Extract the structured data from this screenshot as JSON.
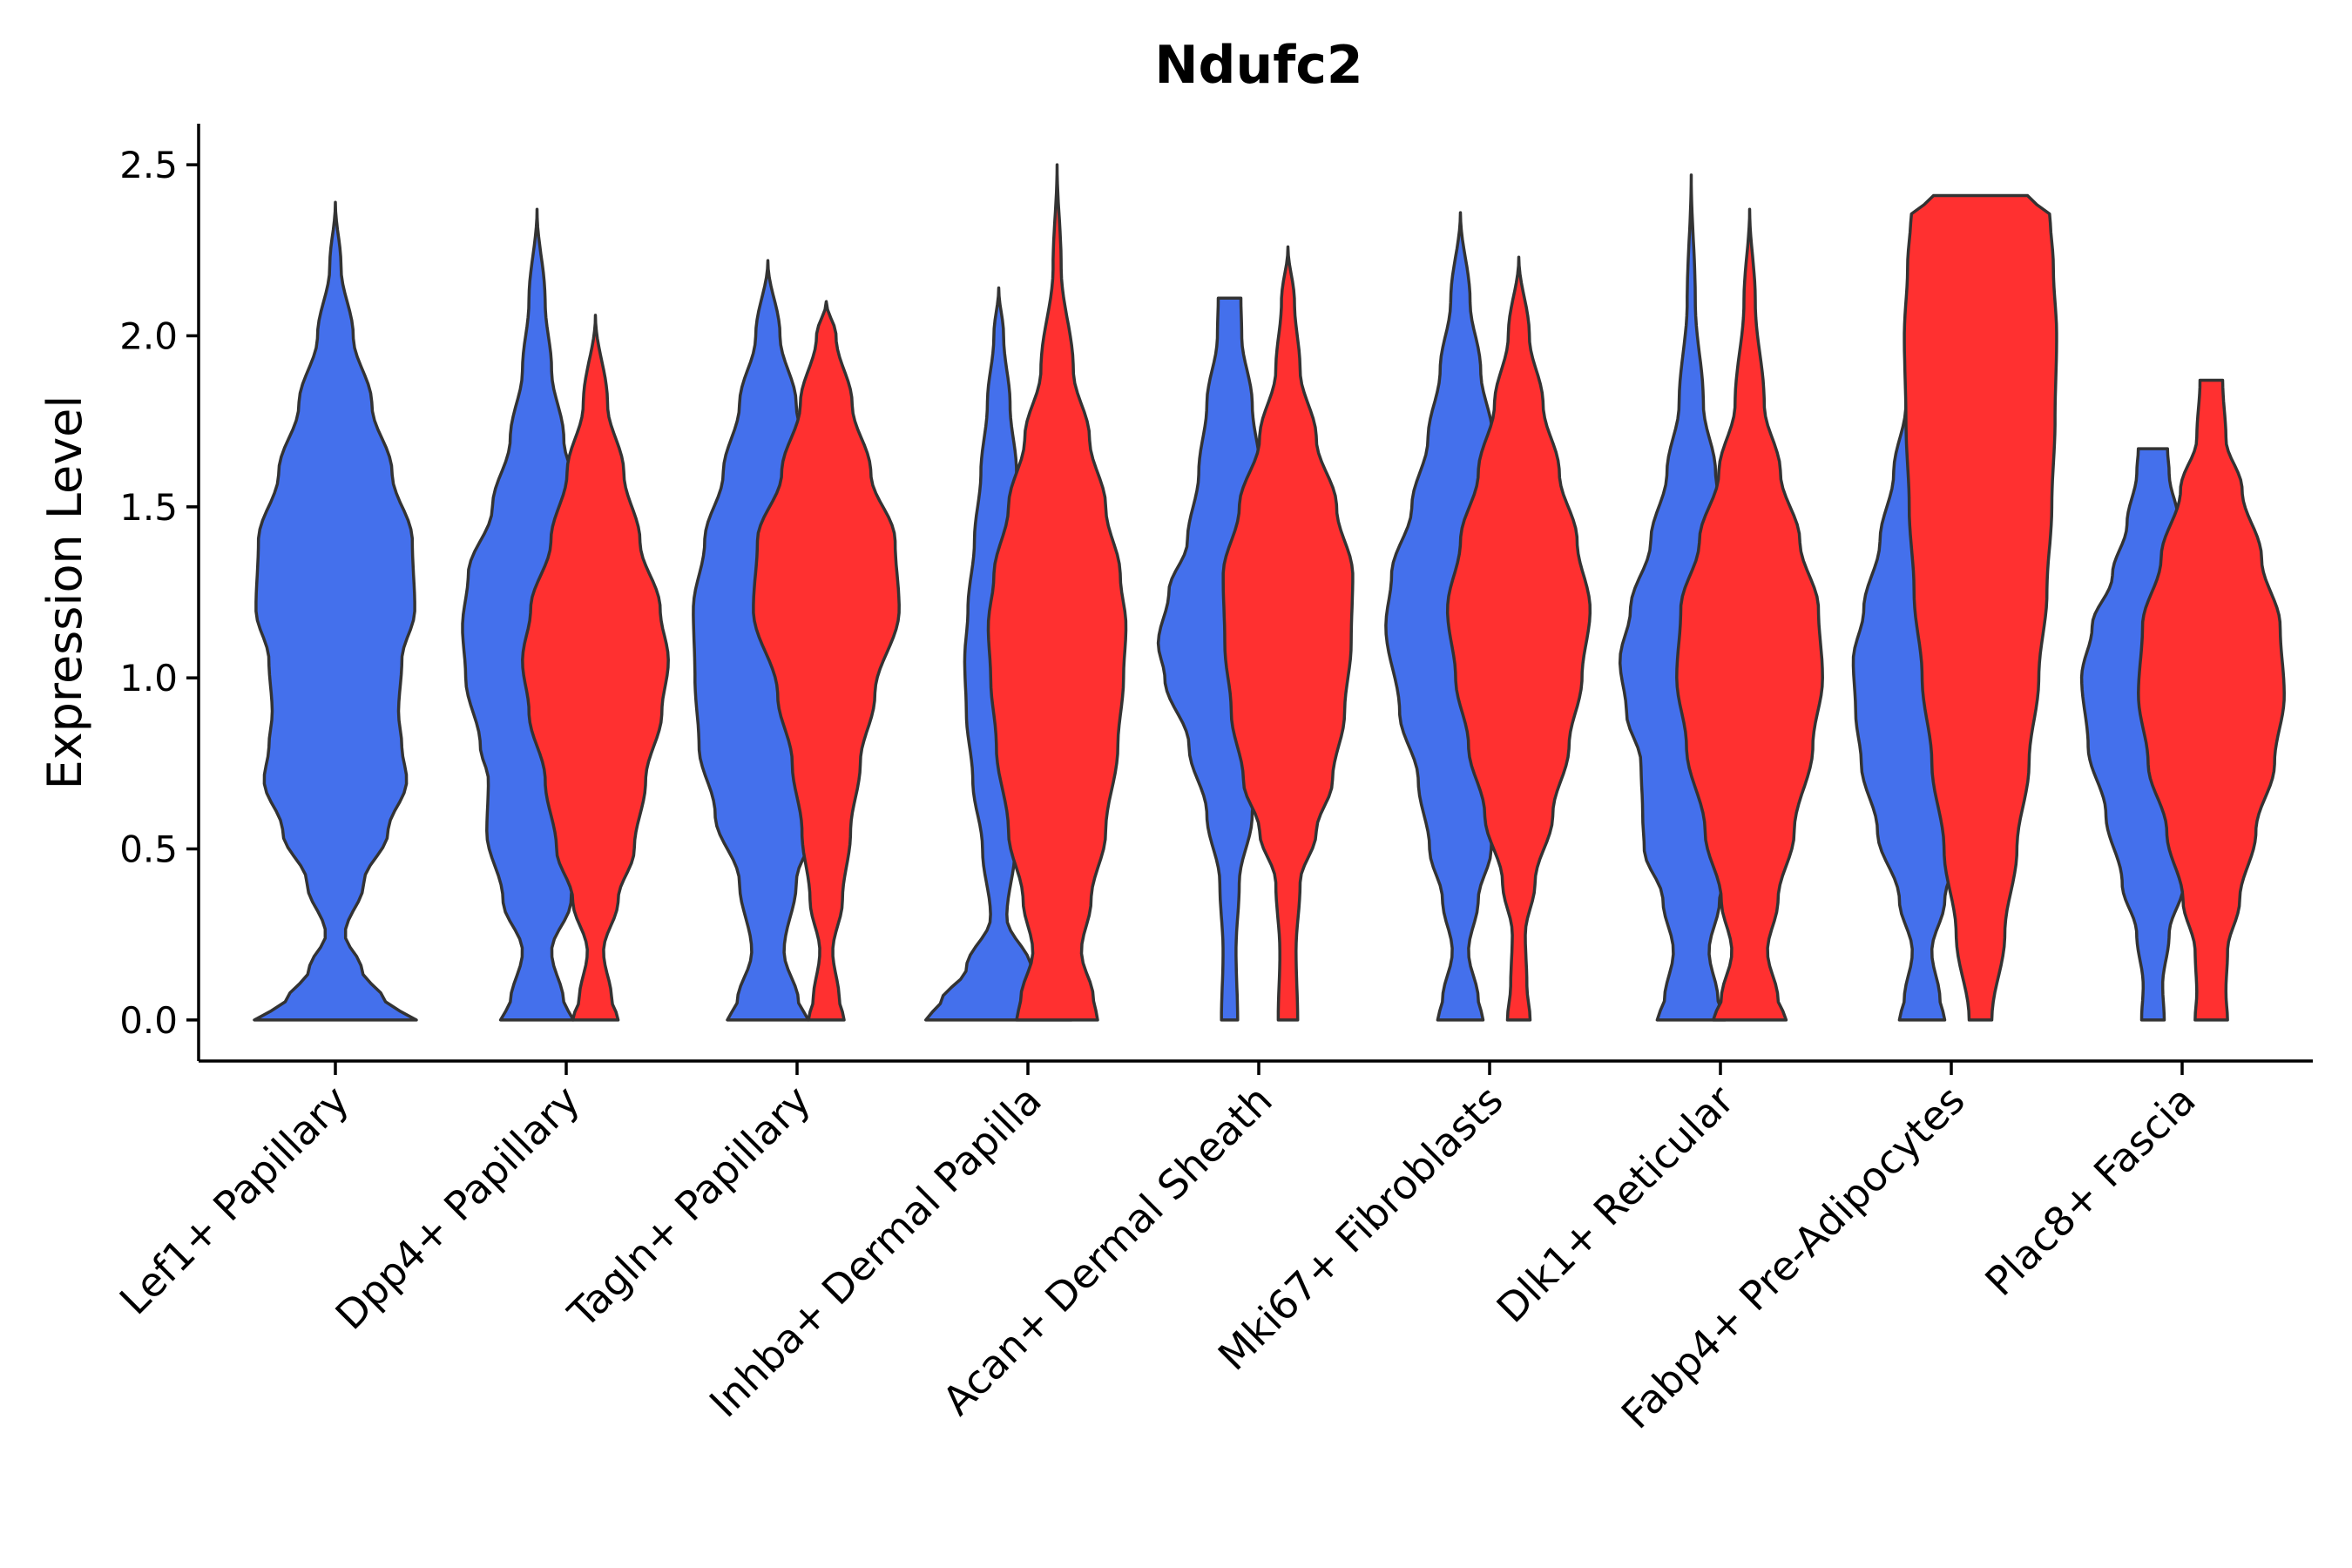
{
  "chart_data": {
    "type": "violin",
    "title": "Ndufc2",
    "xlabel": "",
    "ylabel": "Expression Level",
    "ylim": [
      -0.12,
      2.62
    ],
    "yticks": [
      "0.0",
      "0.5",
      "1.0",
      "1.5",
      "2.0",
      "2.5"
    ],
    "ytick_values": [
      0,
      0.5,
      1.0,
      1.5,
      2.0,
      2.5
    ],
    "grid": false,
    "legend": "none",
    "colors": {
      "blue": "#4470EC",
      "red": "#FF3030"
    },
    "categories": [
      "Lef1+ Papillary",
      "Dpp4+ Papillary",
      "Tagln+ Papillary",
      "Inhba+ Dermal Papilla",
      "Acan+ Dermal Sheath",
      "Mki67+ Fibroblasts",
      "Dlk1+ Reticular",
      "Fabp4+ Pre-Adipocytes",
      "Plac8+ Fascia"
    ],
    "violins": [
      {
        "category": "Lef1+ Papillary",
        "group": "blue",
        "offset": 0,
        "min": 0,
        "max": 2.39,
        "profile": [
          [
            0,
            1.0
          ],
          [
            0.05,
            0.62
          ],
          [
            0.15,
            0.32
          ],
          [
            0.25,
            0.12
          ],
          [
            0.4,
            0.35
          ],
          [
            0.55,
            0.65
          ],
          [
            0.7,
            0.88
          ],
          [
            0.8,
            0.82
          ],
          [
            0.9,
            0.78
          ],
          [
            1.05,
            0.82
          ],
          [
            1.2,
            0.98
          ],
          [
            1.4,
            0.95
          ],
          [
            1.6,
            0.7
          ],
          [
            1.8,
            0.45
          ],
          [
            2.0,
            0.22
          ],
          [
            2.2,
            0.07
          ],
          [
            2.39,
            0.0
          ]
        ]
      },
      {
        "category": "Dpp4+ Papillary",
        "group": "blue",
        "offset": -0.22,
        "min": 0,
        "max": 2.37,
        "profile": [
          [
            0,
            0.45
          ],
          [
            0.05,
            0.33
          ],
          [
            0.2,
            0.18
          ],
          [
            0.35,
            0.42
          ],
          [
            0.55,
            0.62
          ],
          [
            0.7,
            0.6
          ],
          [
            0.8,
            0.7
          ],
          [
            1.0,
            0.88
          ],
          [
            1.15,
            0.92
          ],
          [
            1.3,
            0.85
          ],
          [
            1.5,
            0.55
          ],
          [
            1.7,
            0.33
          ],
          [
            1.9,
            0.18
          ],
          [
            2.1,
            0.1
          ],
          [
            2.37,
            0.0
          ]
        ]
      },
      {
        "category": "Dpp4+ Papillary",
        "group": "red",
        "offset": 0.22,
        "min": 0,
        "max": 2.06,
        "profile": [
          [
            0,
            0.28
          ],
          [
            0.06,
            0.2
          ],
          [
            0.2,
            0.1
          ],
          [
            0.35,
            0.28
          ],
          [
            0.5,
            0.48
          ],
          [
            0.7,
            0.62
          ],
          [
            0.9,
            0.82
          ],
          [
            1.05,
            0.9
          ],
          [
            1.2,
            0.8
          ],
          [
            1.4,
            0.55
          ],
          [
            1.6,
            0.35
          ],
          [
            1.8,
            0.15
          ],
          [
            2.06,
            0.0
          ]
        ]
      },
      {
        "category": "Tagln+ Papillary",
        "group": "blue",
        "offset": -0.22,
        "min": 0,
        "max": 2.22,
        "profile": [
          [
            0,
            0.5
          ],
          [
            0.05,
            0.38
          ],
          [
            0.2,
            0.2
          ],
          [
            0.4,
            0.35
          ],
          [
            0.6,
            0.65
          ],
          [
            0.8,
            0.85
          ],
          [
            1.0,
            0.9
          ],
          [
            1.2,
            0.92
          ],
          [
            1.4,
            0.78
          ],
          [
            1.6,
            0.55
          ],
          [
            1.8,
            0.35
          ],
          [
            2.0,
            0.15
          ],
          [
            2.22,
            0.0
          ]
        ]
      },
      {
        "category": "Tagln+ Papillary",
        "group": "red",
        "offset": 0.22,
        "min": 0,
        "max": 2.1,
        "profile": [
          [
            0,
            0.22
          ],
          [
            0.06,
            0.16
          ],
          [
            0.2,
            0.08
          ],
          [
            0.35,
            0.2
          ],
          [
            0.55,
            0.3
          ],
          [
            0.75,
            0.42
          ],
          [
            0.95,
            0.6
          ],
          [
            1.2,
            0.9
          ],
          [
            1.4,
            0.85
          ],
          [
            1.6,
            0.55
          ],
          [
            1.8,
            0.32
          ],
          [
            2.0,
            0.12
          ],
          [
            2.1,
            0.0
          ]
        ]
      },
      {
        "category": "Inhba+ Dermal Papilla",
        "group": "blue",
        "offset": -0.22,
        "min": 0,
        "max": 2.14,
        "profile": [
          [
            0,
            0.9
          ],
          [
            0.05,
            0.72
          ],
          [
            0.15,
            0.4
          ],
          [
            0.3,
            0.1
          ],
          [
            0.5,
            0.2
          ],
          [
            0.7,
            0.32
          ],
          [
            0.9,
            0.4
          ],
          [
            1.05,
            0.42
          ],
          [
            1.2,
            0.38
          ],
          [
            1.4,
            0.3
          ],
          [
            1.6,
            0.22
          ],
          [
            1.8,
            0.14
          ],
          [
            2.0,
            0.06
          ],
          [
            2.14,
            0.0
          ]
        ]
      },
      {
        "category": "Inhba+ Dermal Papilla",
        "group": "red",
        "offset": 0.22,
        "min": 0,
        "max": 2.5,
        "profile": [
          [
            0,
            0.5
          ],
          [
            0.06,
            0.45
          ],
          [
            0.2,
            0.3
          ],
          [
            0.35,
            0.42
          ],
          [
            0.55,
            0.6
          ],
          [
            0.8,
            0.75
          ],
          [
            1.0,
            0.82
          ],
          [
            1.15,
            0.85
          ],
          [
            1.3,
            0.78
          ],
          [
            1.5,
            0.6
          ],
          [
            1.7,
            0.4
          ],
          [
            1.9,
            0.2
          ],
          [
            2.2,
            0.05
          ],
          [
            2.5,
            0.0
          ]
        ]
      },
      {
        "category": "Acan+ Dermal Sheath",
        "group": "blue",
        "offset": -0.22,
        "min": 0,
        "max": 2.11,
        "profile": [
          [
            0,
            0.1
          ],
          [
            0.2,
            0.08
          ],
          [
            0.4,
            0.12
          ],
          [
            0.6,
            0.28
          ],
          [
            0.8,
            0.5
          ],
          [
            1.0,
            0.8
          ],
          [
            1.1,
            0.88
          ],
          [
            1.25,
            0.75
          ],
          [
            1.4,
            0.52
          ],
          [
            1.6,
            0.38
          ],
          [
            1.8,
            0.28
          ],
          [
            2.0,
            0.15
          ],
          [
            2.11,
            0.14
          ]
        ]
      },
      {
        "category": "Acan+ Dermal Sheath",
        "group": "red",
        "offset": 0.22,
        "min": 0,
        "max": 2.26,
        "profile": [
          [
            0,
            0.12
          ],
          [
            0.2,
            0.1
          ],
          [
            0.4,
            0.15
          ],
          [
            0.55,
            0.35
          ],
          [
            0.7,
            0.55
          ],
          [
            0.9,
            0.7
          ],
          [
            1.1,
            0.78
          ],
          [
            1.3,
            0.8
          ],
          [
            1.5,
            0.6
          ],
          [
            1.7,
            0.35
          ],
          [
            1.9,
            0.15
          ],
          [
            2.1,
            0.08
          ],
          [
            2.26,
            0.0
          ]
        ]
      },
      {
        "category": "Mki67+ Fibroblasts",
        "group": "blue",
        "offset": -0.22,
        "min": 0,
        "max": 2.36,
        "profile": [
          [
            0,
            0.28
          ],
          [
            0.06,
            0.22
          ],
          [
            0.2,
            0.1
          ],
          [
            0.35,
            0.22
          ],
          [
            0.5,
            0.38
          ],
          [
            0.7,
            0.52
          ],
          [
            0.9,
            0.75
          ],
          [
            1.15,
            0.92
          ],
          [
            1.3,
            0.85
          ],
          [
            1.5,
            0.6
          ],
          [
            1.7,
            0.4
          ],
          [
            1.9,
            0.25
          ],
          [
            2.1,
            0.12
          ],
          [
            2.36,
            0.0
          ]
        ]
      },
      {
        "category": "Mki67+ Fibroblasts",
        "group": "red",
        "offset": 0.22,
        "min": 0,
        "max": 2.23,
        "profile": [
          [
            0,
            0.14
          ],
          [
            0.1,
            0.1
          ],
          [
            0.25,
            0.08
          ],
          [
            0.4,
            0.2
          ],
          [
            0.6,
            0.42
          ],
          [
            0.8,
            0.62
          ],
          [
            1.0,
            0.78
          ],
          [
            1.2,
            0.88
          ],
          [
            1.4,
            0.72
          ],
          [
            1.6,
            0.5
          ],
          [
            1.8,
            0.3
          ],
          [
            2.0,
            0.13
          ],
          [
            2.23,
            0.0
          ]
        ]
      },
      {
        "category": "Dlk1+ Reticular",
        "group": "blue",
        "offset": -0.22,
        "min": 0,
        "max": 2.47,
        "profile": [
          [
            0,
            0.42
          ],
          [
            0.06,
            0.33
          ],
          [
            0.2,
            0.22
          ],
          [
            0.35,
            0.35
          ],
          [
            0.5,
            0.58
          ],
          [
            0.6,
            0.6
          ],
          [
            0.75,
            0.62
          ],
          [
            0.9,
            0.8
          ],
          [
            1.05,
            0.88
          ],
          [
            1.2,
            0.75
          ],
          [
            1.4,
            0.5
          ],
          [
            1.6,
            0.3
          ],
          [
            1.8,
            0.15
          ],
          [
            2.1,
            0.05
          ],
          [
            2.47,
            0.0
          ]
        ]
      },
      {
        "category": "Dlk1+ Reticular",
        "group": "red",
        "offset": 0.22,
        "min": 0,
        "max": 2.37,
        "profile": [
          [
            0,
            0.45
          ],
          [
            0.06,
            0.35
          ],
          [
            0.2,
            0.22
          ],
          [
            0.35,
            0.35
          ],
          [
            0.55,
            0.55
          ],
          [
            0.8,
            0.78
          ],
          [
            1.0,
            0.9
          ],
          [
            1.2,
            0.85
          ],
          [
            1.4,
            0.62
          ],
          [
            1.6,
            0.38
          ],
          [
            1.8,
            0.18
          ],
          [
            2.1,
            0.07
          ],
          [
            2.37,
            0.0
          ]
        ]
      },
      {
        "category": "Fabp4+ Pre-Adipocytes",
        "group": "blue",
        "offset": -0.22,
        "min": 0,
        "max": 2.33,
        "profile": [
          [
            0,
            0.28
          ],
          [
            0.06,
            0.22
          ],
          [
            0.2,
            0.12
          ],
          [
            0.35,
            0.28
          ],
          [
            0.55,
            0.55
          ],
          [
            0.75,
            0.75
          ],
          [
            0.9,
            0.82
          ],
          [
            1.05,
            0.85
          ],
          [
            1.2,
            0.72
          ],
          [
            1.4,
            0.52
          ],
          [
            1.6,
            0.35
          ],
          [
            1.8,
            0.2
          ],
          [
            2.0,
            0.1
          ],
          [
            2.33,
            0.0
          ]
        ]
      },
      {
        "category": "Fabp4+ Pre-Adipocytes",
        "group": "red",
        "offset": 0.22,
        "min": 0,
        "max": 2.41,
        "profile": [
          [
            0,
            0.14
          ],
          [
            0.25,
            0.3
          ],
          [
            0.5,
            0.45
          ],
          [
            0.75,
            0.6
          ],
          [
            1.0,
            0.72
          ],
          [
            1.25,
            0.82
          ],
          [
            1.5,
            0.88
          ],
          [
            1.75,
            0.92
          ],
          [
            2.0,
            0.94
          ],
          [
            2.2,
            0.9
          ],
          [
            2.35,
            0.86
          ],
          [
            2.41,
            0.58
          ]
        ]
      },
      {
        "category": "Plac8+ Fascia",
        "group": "blue",
        "offset": -0.22,
        "min": 0,
        "max": 1.67,
        "profile": [
          [
            0,
            0.14
          ],
          [
            0.1,
            0.12
          ],
          [
            0.25,
            0.2
          ],
          [
            0.4,
            0.38
          ],
          [
            0.6,
            0.58
          ],
          [
            0.8,
            0.8
          ],
          [
            1.0,
            0.88
          ],
          [
            1.15,
            0.75
          ],
          [
            1.3,
            0.5
          ],
          [
            1.45,
            0.32
          ],
          [
            1.6,
            0.2
          ],
          [
            1.67,
            0.18
          ]
        ]
      },
      {
        "category": "Plac8+ Fascia",
        "group": "red",
        "offset": 0.22,
        "min": 0,
        "max": 1.87,
        "profile": [
          [
            0,
            0.2
          ],
          [
            0.08,
            0.18
          ],
          [
            0.2,
            0.2
          ],
          [
            0.35,
            0.35
          ],
          [
            0.55,
            0.55
          ],
          [
            0.75,
            0.78
          ],
          [
            0.95,
            0.9
          ],
          [
            1.15,
            0.85
          ],
          [
            1.35,
            0.62
          ],
          [
            1.55,
            0.38
          ],
          [
            1.7,
            0.18
          ],
          [
            1.87,
            0.14
          ]
        ]
      }
    ]
  }
}
